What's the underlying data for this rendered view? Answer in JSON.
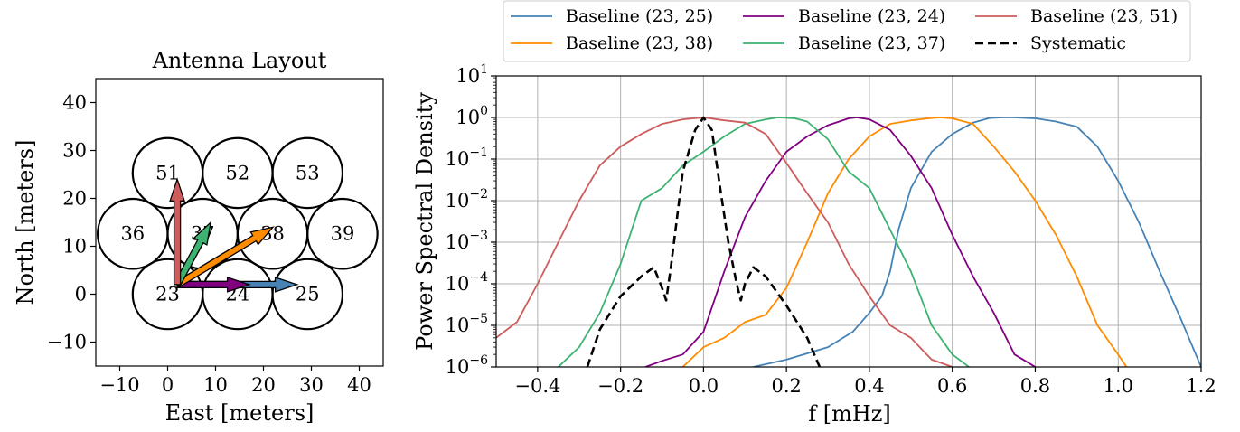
{
  "chart_data": [
    {
      "type": "diagram",
      "title": "Antenna Layout",
      "xlabel": "East [meters]",
      "ylabel": "North [meters]",
      "xlim": [
        -15,
        45
      ],
      "ylim": [
        -15,
        45
      ],
      "xticks": [
        -10,
        0,
        10,
        20,
        30,
        40
      ],
      "yticks": [
        -10,
        0,
        10,
        20,
        30,
        40
      ],
      "xtick_labels": [
        "−10",
        "0",
        "10",
        "20",
        "30",
        "40"
      ],
      "ytick_labels": [
        "−10",
        "0",
        "10",
        "20",
        "30",
        "40"
      ],
      "antenna_radius": 7.3,
      "antennas": [
        {
          "label": "23",
          "x": 0,
          "y": 0
        },
        {
          "label": "24",
          "x": 14.6,
          "y": 0
        },
        {
          "label": "25",
          "x": 29.2,
          "y": 0
        },
        {
          "label": "36",
          "x": -7.3,
          "y": 12.6
        },
        {
          "label": "37",
          "x": 7.3,
          "y": 12.6
        },
        {
          "label": "38",
          "x": 21.9,
          "y": 12.6
        },
        {
          "label": "39",
          "x": 36.5,
          "y": 12.6
        },
        {
          "label": "51",
          "x": 0,
          "y": 25.3
        },
        {
          "label": "52",
          "x": 14.6,
          "y": 25.3
        },
        {
          "label": "53",
          "x": 29.2,
          "y": 25.3
        }
      ],
      "arrows": [
        {
          "to": "25",
          "color": "#4682b4",
          "dx": 25,
          "dy": 0
        },
        {
          "to": "24",
          "color": "#800080",
          "dx": 15,
          "dy": 0
        },
        {
          "to": "38",
          "color": "#ff8c00",
          "dx": 20,
          "dy": 12
        },
        {
          "to": "37",
          "color": "#3cb371",
          "dx": 7,
          "dy": 13
        },
        {
          "to": "51",
          "color": "#cd5c5c",
          "dx": 0,
          "dy": 22
        }
      ],
      "arrow_origin": [
        2,
        2
      ]
    },
    {
      "type": "line",
      "xlabel": "f [mHz]",
      "ylabel": "Power Spectral Density",
      "yscale": "log",
      "xlim": [
        -0.5,
        1.2
      ],
      "ylim": [
        1e-06,
        10
      ],
      "xticks": [
        -0.4,
        -0.2,
        0.0,
        0.2,
        0.4,
        0.6,
        0.8,
        1.0,
        1.2
      ],
      "xtick_labels": [
        "−0.4",
        "−0.2",
        "0.0",
        "0.2",
        "0.4",
        "0.6",
        "0.8",
        "1.0",
        "1.2"
      ],
      "ytick_exponents": [
        "1",
        "0",
        "−1",
        "−2",
        "−3",
        "−4",
        "−5",
        "−6"
      ],
      "grid": true,
      "legend_position": "top",
      "series": [
        {
          "name": "Baseline (23, 25)",
          "color": "#4682b4",
          "dash": "solid",
          "x": [
            0.12,
            0.2,
            0.3,
            0.36,
            0.4,
            0.43,
            0.45,
            0.47,
            0.5,
            0.55,
            0.6,
            0.65,
            0.69,
            0.72,
            0.75,
            0.8,
            0.85,
            0.9,
            0.95,
            1.0,
            1.05,
            1.1,
            1.15,
            1.2
          ],
          "y": [
            1e-06,
            1.5e-06,
            3e-06,
            7e-06,
            2e-05,
            5e-05,
            0.0002,
            0.002,
            0.02,
            0.15,
            0.4,
            0.75,
            0.97,
            1.0,
            1.0,
            0.95,
            0.8,
            0.6,
            0.2,
            0.03,
            0.003,
            0.0002,
            1.5e-05,
            1e-06
          ]
        },
        {
          "name": "Baseline (23, 38)",
          "color": "#ff8c00",
          "dash": "solid",
          "x": [
            -0.05,
            0.0,
            0.05,
            0.1,
            0.15,
            0.2,
            0.25,
            0.3,
            0.35,
            0.4,
            0.45,
            0.5,
            0.55,
            0.57,
            0.6,
            0.65,
            0.7,
            0.75,
            0.8,
            0.85,
            0.9,
            0.95,
            1.0,
            1.02
          ],
          "y": [
            1e-06,
            3e-06,
            5e-06,
            1.2e-05,
            1.8e-05,
            8e-05,
            0.001,
            0.015,
            0.1,
            0.35,
            0.7,
            0.85,
            0.97,
            1.0,
            0.95,
            0.7,
            0.2,
            0.05,
            0.01,
            0.0015,
            0.00015,
            1e-05,
            2e-06,
            1e-06
          ]
        },
        {
          "name": "Baseline (23, 24)",
          "color": "#800080",
          "dash": "solid",
          "x": [
            -0.14,
            -0.1,
            -0.05,
            0.0,
            0.05,
            0.1,
            0.15,
            0.2,
            0.25,
            0.3,
            0.35,
            0.37,
            0.4,
            0.45,
            0.5,
            0.55,
            0.6,
            0.65,
            0.7,
            0.75,
            0.8
          ],
          "y": [
            1e-06,
            1.4e-06,
            2e-06,
            7e-06,
            0.0002,
            0.004,
            0.03,
            0.15,
            0.35,
            0.65,
            0.95,
            1.0,
            0.9,
            0.5,
            0.12,
            0.02,
            0.0015,
            0.00015,
            2e-05,
            2e-06,
            1e-06
          ]
        },
        {
          "name": "Baseline (23, 37)",
          "color": "#3cb371",
          "dash": "solid",
          "x": [
            -0.35,
            -0.3,
            -0.25,
            -0.2,
            -0.15,
            -0.1,
            -0.05,
            0.0,
            0.05,
            0.1,
            0.15,
            0.18,
            0.22,
            0.25,
            0.3,
            0.35,
            0.4,
            0.45,
            0.5,
            0.55,
            0.6,
            0.64
          ],
          "y": [
            1e-06,
            3e-06,
            2e-05,
            0.0003,
            0.01,
            0.02,
            0.07,
            0.15,
            0.35,
            0.7,
            0.9,
            1.0,
            0.95,
            0.8,
            0.3,
            0.05,
            0.02,
            0.002,
            0.0002,
            1e-05,
            2e-06,
            1e-06
          ]
        },
        {
          "name": "Baseline (23, 51)",
          "color": "#cd5c5c",
          "dash": "solid",
          "x": [
            -0.5,
            -0.45,
            -0.4,
            -0.35,
            -0.3,
            -0.25,
            -0.2,
            -0.15,
            -0.1,
            -0.05,
            0.0,
            0.05,
            0.1,
            0.15,
            0.2,
            0.25,
            0.3,
            0.35,
            0.4,
            0.45,
            0.5,
            0.55,
            0.6
          ],
          "y": [
            5e-06,
            1.2e-05,
            0.0001,
            0.001,
            0.01,
            0.07,
            0.2,
            0.4,
            0.7,
            0.9,
            1.0,
            0.85,
            0.75,
            0.4,
            0.08,
            0.015,
            0.003,
            0.0003,
            5e-05,
            1e-05,
            5e-06,
            1.5e-06,
            1e-06
          ]
        },
        {
          "name": "Systematic",
          "color": "#000000",
          "dash": "dashed",
          "x": [
            -0.28,
            -0.25,
            -0.2,
            -0.15,
            -0.12,
            -0.1,
            -0.09,
            -0.08,
            -0.05,
            -0.02,
            0.0,
            0.02,
            0.04,
            0.06,
            0.08,
            0.09,
            0.1,
            0.12,
            0.15,
            0.2,
            0.25,
            0.28
          ],
          "y": [
            1e-06,
            8e-06,
            5e-05,
            0.00015,
            0.00025,
            8e-05,
            4e-05,
            0.0002,
            0.05,
            0.5,
            1.0,
            0.5,
            0.02,
            0.001,
            0.0001,
            4e-05,
            0.0001,
            0.00025,
            0.00015,
            3e-05,
            5e-06,
            1e-06
          ]
        }
      ]
    }
  ]
}
